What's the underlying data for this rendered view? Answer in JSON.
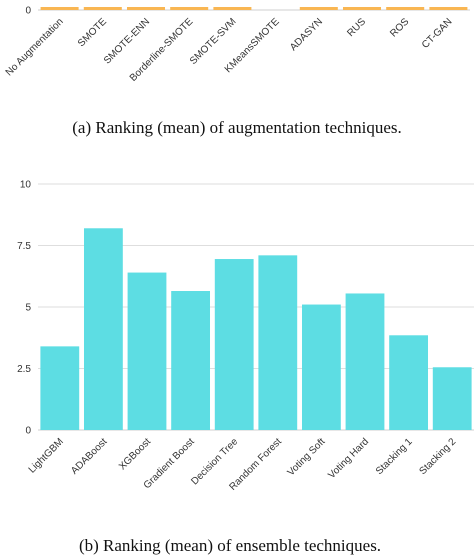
{
  "chart_data": [
    {
      "type": "bar",
      "title": "",
      "xlabel": "",
      "ylabel": "",
      "color": "#F9B652",
      "categories": [
        "No Augmentation",
        "SMOTE",
        "SMOTE-ENN",
        "Borderline-SMOTE",
        "SMOTE-SVM",
        "KMeansSMOTE",
        "ADASYN",
        "RUS",
        "ROS",
        "CT-GAN"
      ],
      "values": [
        0.5,
        0.5,
        0.5,
        0.5,
        0.5,
        0,
        0.5,
        0.5,
        0.5,
        0.5
      ],
      "yticks": [
        "0"
      ],
      "ylim": [
        0,
        10
      ],
      "caption": "(a)  Ranking (mean) of augmentation techniques."
    },
    {
      "type": "bar",
      "title": "",
      "xlabel": "",
      "ylabel": "",
      "color": "#5DDDE3",
      "categories": [
        "LightGBM",
        "ADABoost",
        "XGBoost",
        "Gradient Boost",
        "Decision Tree",
        "Random Forest",
        "Voting Soft",
        "Voting Hard",
        "Stacking 1",
        "Stacking 2"
      ],
      "values": [
        3.4,
        8.2,
        6.4,
        5.65,
        6.95,
        7.1,
        5.1,
        5.55,
        3.85,
        2.55
      ],
      "yticks": [
        "0",
        "2.5",
        "5",
        "7.5",
        "10"
      ],
      "ytick_values": [
        0,
        2.5,
        5,
        7.5,
        10
      ],
      "ylim": [
        0,
        10
      ],
      "grid": true,
      "caption": "(b)  Ranking (mean) of ensemble techniques."
    }
  ]
}
